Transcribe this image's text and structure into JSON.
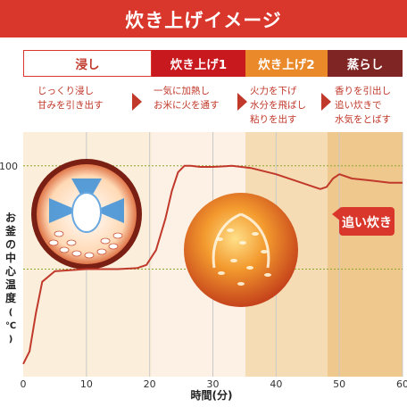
{
  "header": {
    "title": "炊き上げイメージ"
  },
  "phases": [
    {
      "label": "浸し",
      "desc": [
        "じっくり浸し",
        "甘みを引き出す"
      ]
    },
    {
      "label": "炊き上げ1",
      "desc": [
        "一気に加熱し",
        "お米に火を通す"
      ]
    },
    {
      "label": "炊き上げ2",
      "desc": [
        "火力を下げ",
        "水分を飛ばし",
        "粘りを出す"
      ]
    },
    {
      "label": "蒸らし",
      "desc": [
        "香りを引出し",
        "追い炊きで",
        "水気をとばす"
      ]
    }
  ],
  "colors": {
    "banner": "#d9372b",
    "phase1_bg": "#ffffff",
    "phase2_bg": "#c8191f",
    "phase3_bg": "#e9892a",
    "phase4_bg": "#7f2524",
    "curve": "#c0392b",
    "zone_light": "#fbeedb",
    "zone_mid": "#f6dcb4",
    "zone_dark": "#eec88c"
  },
  "callout": {
    "label": "追い炊き"
  },
  "chart_data": {
    "type": "line",
    "title": "",
    "xlabel": "時間(分)",
    "ylabel": "お釜の中心温度(℃)",
    "xlim": [
      0,
      60
    ],
    "ylim": [
      0,
      116
    ],
    "x_ticks": [
      "0",
      "10",
      "20",
      "30",
      "40",
      "50",
      "60"
    ],
    "y_ticks": [
      "100"
    ],
    "grid": true,
    "series": [
      {
        "name": "",
        "x": [
          0,
          1,
          2,
          3,
          5,
          10,
          15,
          18,
          19.5,
          21,
          22.5,
          23.5,
          24.5,
          25.5,
          26.5,
          28,
          30,
          33,
          36,
          40,
          43,
          46,
          47,
          48,
          49,
          50,
          52,
          55,
          58,
          60
        ],
        "y": [
          6,
          12,
          30,
          45,
          50,
          51,
          51,
          51.5,
          53,
          60,
          75,
          88,
          97,
          100,
          100,
          99.5,
          99.5,
          100,
          99,
          96,
          93,
          90,
          89,
          90,
          94,
          96,
          94,
          93,
          92,
          92
        ]
      }
    ]
  }
}
